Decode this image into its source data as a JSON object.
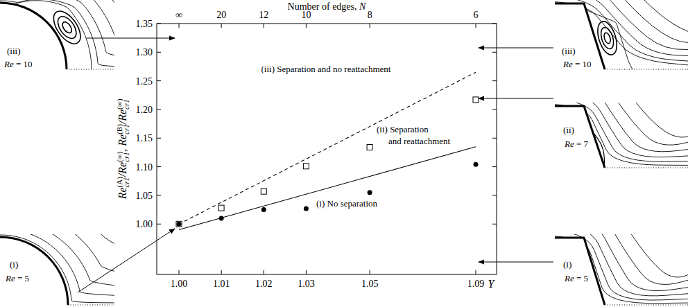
{
  "chart_data": {
    "type": "scatter",
    "xlabel": "Υ",
    "ylabel": [
      {
        "text": "Re",
        "sup": "(A)",
        "sub": "cr1"
      },
      {
        "text": "/Re",
        "sup": "(∞)",
        "sub": "cr1"
      },
      {
        "text": ", Re",
        "sup": "(B)",
        "sub": "cr1"
      },
      {
        "text": "/Re",
        "sup": "(∞)",
        "sub": "cr1"
      }
    ],
    "categories": [
      "1.00",
      null,
      "1.01",
      null,
      "1.02",
      null,
      "1.03",
      null,
      null,
      "1.05",
      null,
      null,
      null,
      null,
      "1.09"
    ],
    "top_axis": {
      "label": "Number of edges, N",
      "categories": [
        "∞",
        null,
        "20",
        null,
        "12",
        null,
        "10",
        null,
        null,
        "8",
        null,
        null,
        null,
        null,
        "6"
      ]
    },
    "ylim": [
      0.912,
      1.35
    ],
    "yticks": [
      {
        "value": 1,
        "label": "1.00"
      },
      1.05,
      {
        "value": 1.1,
        "label": "1.10"
      },
      1.15,
      {
        "value": 1.2,
        "label": "1.20"
      },
      1.25,
      {
        "value": 1.3,
        "label": "1.30"
      },
      1.35
    ],
    "grid": false,
    "series": [
      {
        "type": "line",
        "line_style": "dashed",
        "color": "#000000",
        "x": [
          "1.00",
          "1.09"
        ],
        "values": [
          1.0,
          1.265
        ]
      },
      {
        "type": "line",
        "line_style": "solid",
        "color": "#000000",
        "x": [
          "1.00",
          "1.09"
        ],
        "values": [
          0.99,
          1.135
        ]
      },
      {
        "type": "scatter",
        "marker": "open-square",
        "color": "#000000",
        "values": [
          1.0,
          null,
          1.028,
          null,
          1.057,
          null,
          1.101,
          null,
          null,
          1.134,
          null,
          null,
          null,
          null,
          1.217
        ]
      },
      {
        "type": "scatter",
        "marker": "circle",
        "color": "#000000",
        "values": [
          1.0,
          null,
          1.01,
          null,
          1.025,
          null,
          1.027,
          null,
          null,
          1.055,
          null,
          null,
          null,
          null,
          1.104
        ]
      }
    ],
    "annotations": [
      {
        "text": "(iii) Separation and no reattachment"
      },
      {
        "text": [
          "(ii) Separation",
          "and reattachment"
        ]
      },
      {
        "text": "(i) No separation"
      }
    ],
    "insets": {
      "left": [
        {
          "label": "(iii)",
          "text": "Re = 10"
        },
        {
          "label": "(i)",
          "text": "Re = 5"
        }
      ],
      "right": [
        {
          "label": "(iii)",
          "text": "Re = 10"
        },
        {
          "label": "(ii)",
          "text": "Re = 7"
        },
        {
          "label": "(i)",
          "text": "Re = 5"
        }
      ]
    }
  }
}
